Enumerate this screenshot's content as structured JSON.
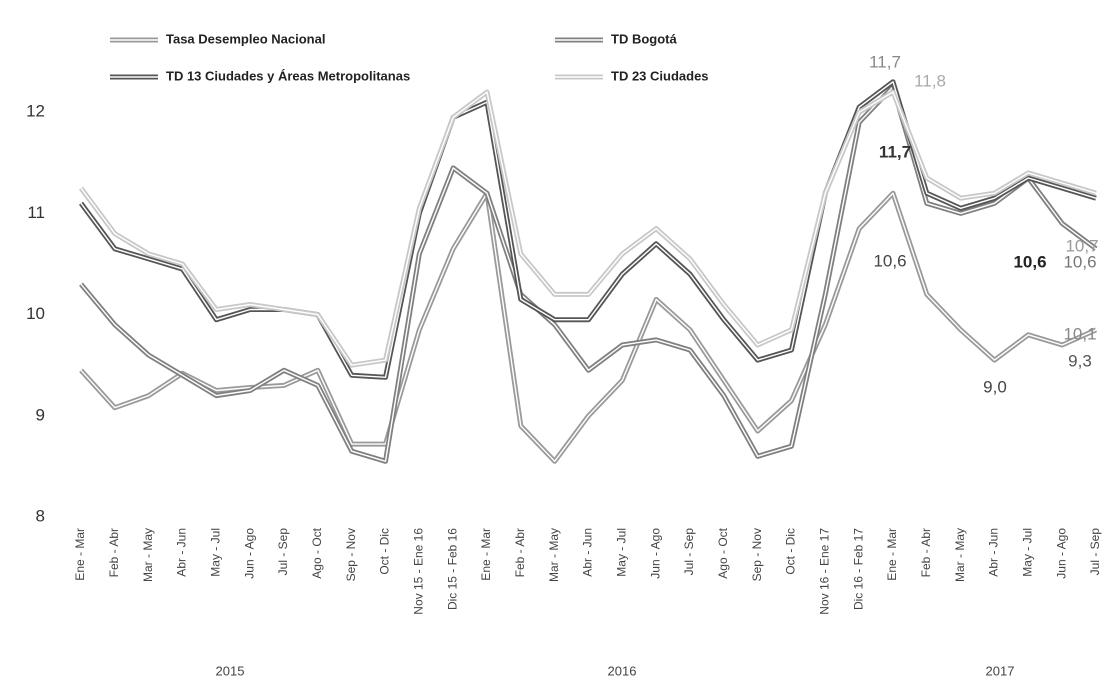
{
  "chart_data": {
    "type": "line",
    "categories": [
      "Ene - Mar",
      "Feb - Abr",
      "Mar - May",
      "Abr - Jun",
      "May - Jul",
      "Jun - Ago",
      "Jul - Sep",
      "Ago - Oct",
      "Sep - Nov",
      "Oct - Dic",
      "Nov 15 - Ene 16",
      "Dic 15 - Feb 16",
      "Ene - Mar",
      "Feb - Abr",
      "Mar - May",
      "Abr - Jun",
      "May - Jul",
      "Jun - Ago",
      "Jul - Sep",
      "Ago - Oct",
      "Sep - Nov",
      "Oct - Dic",
      "Nov 16 - Ene 17",
      "Dic 16 - Feb 17",
      "Ene - Mar",
      "Feb - Abr",
      "Mar - May",
      "Abr - Jun",
      "May - Jul",
      "Jun - Ago",
      "Jul - Sep"
    ],
    "years": [
      "2015",
      "2016",
      "2017"
    ],
    "series": [
      {
        "name": "Tasa Desempleo Nacional",
        "color": "#9a9a9a",
        "values": [
          9.45,
          9.08,
          9.2,
          9.42,
          9.25,
          9.28,
          9.3,
          9.45,
          8.72,
          8.72,
          9.85,
          10.65,
          11.2,
          8.9,
          8.55,
          9.0,
          9.35,
          10.15,
          9.85,
          9.35,
          8.85,
          9.15,
          9.9,
          10.85,
          11.2,
          10.2,
          9.85,
          9.55,
          9.8,
          9.7,
          9.85
        ]
      },
      {
        "name": "TD Bogotá",
        "color": "#808080",
        "values": [
          10.3,
          9.9,
          9.6,
          9.4,
          9.2,
          9.25,
          9.45,
          9.3,
          8.65,
          8.55,
          10.6,
          11.45,
          11.2,
          10.2,
          9.9,
          9.45,
          9.7,
          9.75,
          9.65,
          9.2,
          8.6,
          8.7,
          10.2,
          11.9,
          12.25,
          11.1,
          11.0,
          11.1,
          11.35,
          10.9,
          10.65
        ]
      },
      {
        "name": "TD 13 Ciudades y Áreas Metropolitanas",
        "color": "#555555",
        "values": [
          11.1,
          10.65,
          10.55,
          10.45,
          9.95,
          10.05,
          10.05,
          10.0,
          9.4,
          9.38,
          11.0,
          11.95,
          12.1,
          10.15,
          9.95,
          9.95,
          10.4,
          10.7,
          10.4,
          9.95,
          9.55,
          9.65,
          11.2,
          12.05,
          12.3,
          11.2,
          11.05,
          11.15,
          11.35,
          11.25,
          11.15
        ]
      },
      {
        "name": "TD 23 Ciudades",
        "color": "#c8c8c8",
        "values": [
          11.25,
          10.8,
          10.6,
          10.5,
          10.05,
          10.1,
          10.05,
          10.0,
          9.5,
          9.55,
          11.05,
          11.95,
          12.2,
          10.6,
          10.2,
          10.2,
          10.6,
          10.85,
          10.55,
          10.1,
          9.7,
          9.85,
          11.2,
          12.0,
          12.2,
          11.35,
          11.15,
          11.2,
          11.4,
          11.3,
          11.2
        ]
      }
    ],
    "annotations": [
      "11,7",
      "11,8",
      "11,7",
      "10,6",
      "10,6",
      "10,6",
      "10,7",
      "10,1",
      "9,0",
      "9,3"
    ],
    "ylim": [
      8,
      12.4
    ],
    "yticks": [
      8,
      9,
      10,
      11,
      12
    ],
    "grid": false
  }
}
